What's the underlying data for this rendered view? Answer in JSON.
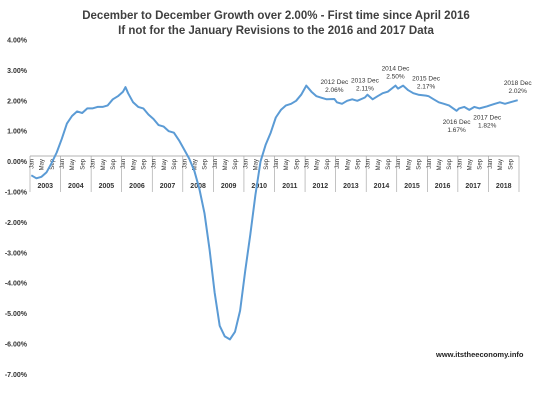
{
  "chart_data": {
    "type": "line",
    "title": "December to December Growth over 2.00%  - First time since April 2016",
    "subtitle": "If not for the January Revisions to the 2016 and 2017 Data",
    "xlabel": "",
    "ylabel": "",
    "ylim": [
      -7.0,
      4.0
    ],
    "ytick_labels": [
      "4.00%",
      "3.00%",
      "2.00%",
      "1.00%",
      "0.00%",
      "-1.00%",
      "-2.00%",
      "-3.00%",
      "-4.00%",
      "-5.00%",
      "-6.00%",
      "-7.00%"
    ],
    "month_tick_labels": [
      "Jan",
      "May",
      "Sep"
    ],
    "years": [
      "2003",
      "2004",
      "2005",
      "2006",
      "2007",
      "2008",
      "2009",
      "2010",
      "2011",
      "2012",
      "2013",
      "2014",
      "2015",
      "2016",
      "2017",
      "2018"
    ],
    "grid": false,
    "legend": "none",
    "line_color": "#5b9bd5",
    "source": "www.itstheeconomy.info",
    "series": [
      {
        "points": [
          [
            "2003-01",
            -0.45
          ],
          [
            "2003-03",
            -0.55
          ],
          [
            "2003-05",
            -0.5
          ],
          [
            "2003-07",
            -0.35
          ],
          [
            "2003-09",
            -0.05
          ],
          [
            "2003-11",
            0.3
          ],
          [
            "2004-01",
            0.75
          ],
          [
            "2004-03",
            1.25
          ],
          [
            "2004-05",
            1.5
          ],
          [
            "2004-07",
            1.65
          ],
          [
            "2004-09",
            1.6
          ],
          [
            "2004-11",
            1.75
          ],
          [
            "2005-01",
            1.75
          ],
          [
            "2005-03",
            1.8
          ],
          [
            "2005-05",
            1.8
          ],
          [
            "2005-07",
            1.85
          ],
          [
            "2005-09",
            2.05
          ],
          [
            "2005-11",
            2.15
          ],
          [
            "2006-01",
            2.3
          ],
          [
            "2006-02",
            2.45
          ],
          [
            "2006-03",
            2.25
          ],
          [
            "2006-05",
            1.95
          ],
          [
            "2006-07",
            1.8
          ],
          [
            "2006-09",
            1.75
          ],
          [
            "2006-11",
            1.55
          ],
          [
            "2007-01",
            1.4
          ],
          [
            "2007-03",
            1.2
          ],
          [
            "2007-05",
            1.15
          ],
          [
            "2007-07",
            1.0
          ],
          [
            "2007-09",
            0.95
          ],
          [
            "2007-11",
            0.7
          ],
          [
            "2008-01",
            0.4
          ],
          [
            "2008-03",
            0.1
          ],
          [
            "2008-05",
            -0.3
          ],
          [
            "2008-07",
            -0.9
          ],
          [
            "2008-09",
            -1.7
          ],
          [
            "2008-11",
            -2.9
          ],
          [
            "2009-01",
            -4.3
          ],
          [
            "2009-03",
            -5.4
          ],
          [
            "2009-05",
            -5.75
          ],
          [
            "2009-07",
            -5.85
          ],
          [
            "2009-09",
            -5.6
          ],
          [
            "2009-11",
            -4.9
          ],
          [
            "2010-01",
            -3.6
          ],
          [
            "2010-03",
            -2.4
          ],
          [
            "2010-05",
            -1.1
          ],
          [
            "2010-07",
            0.0
          ],
          [
            "2010-09",
            0.55
          ],
          [
            "2010-11",
            0.95
          ],
          [
            "2011-01",
            1.45
          ],
          [
            "2011-03",
            1.7
          ],
          [
            "2011-05",
            1.85
          ],
          [
            "2011-07",
            1.9
          ],
          [
            "2011-09",
            2.0
          ],
          [
            "2011-11",
            2.2
          ],
          [
            "2012-01",
            2.5
          ],
          [
            "2012-03",
            2.3
          ],
          [
            "2012-05",
            2.15
          ],
          [
            "2012-07",
            2.1
          ],
          [
            "2012-09",
            2.05
          ],
          [
            "2012-12",
            2.06
          ],
          [
            "2013-01",
            1.95
          ],
          [
            "2013-03",
            1.9
          ],
          [
            "2013-05",
            2.0
          ],
          [
            "2013-07",
            2.05
          ],
          [
            "2013-09",
            2.0
          ],
          [
            "2013-12",
            2.11
          ],
          [
            "2014-01",
            2.2
          ],
          [
            "2014-03",
            2.05
          ],
          [
            "2014-05",
            2.15
          ],
          [
            "2014-07",
            2.25
          ],
          [
            "2014-09",
            2.3
          ],
          [
            "2014-12",
            2.5
          ],
          [
            "2015-01",
            2.4
          ],
          [
            "2015-03",
            2.5
          ],
          [
            "2015-05",
            2.35
          ],
          [
            "2015-07",
            2.25
          ],
          [
            "2015-09",
            2.2
          ],
          [
            "2015-12",
            2.17
          ],
          [
            "2016-01",
            2.15
          ],
          [
            "2016-03",
            2.05
          ],
          [
            "2016-05",
            1.95
          ],
          [
            "2016-07",
            1.9
          ],
          [
            "2016-09",
            1.85
          ],
          [
            "2016-12",
            1.67
          ],
          [
            "2017-01",
            1.75
          ],
          [
            "2017-03",
            1.8
          ],
          [
            "2017-05",
            1.7
          ],
          [
            "2017-07",
            1.8
          ],
          [
            "2017-09",
            1.75
          ],
          [
            "2017-12",
            1.82
          ],
          [
            "2018-01",
            1.85
          ],
          [
            "2018-03",
            1.9
          ],
          [
            "2018-05",
            1.95
          ],
          [
            "2018-07",
            1.9
          ],
          [
            "2018-09",
            1.95
          ],
          [
            "2018-12",
            2.02
          ]
        ]
      }
    ],
    "annotations": [
      {
        "label": "2012 Dec",
        "value": "2.06%",
        "x": "2012-12",
        "y": 2.06,
        "text_pos": "above"
      },
      {
        "label": "2013 Dec",
        "value": "2.11%",
        "x": "2013-12",
        "y": 2.11,
        "text_pos": "above"
      },
      {
        "label": "2014 Dec",
        "value": "2.50%",
        "x": "2014-12",
        "y": 2.5,
        "text_pos": "above"
      },
      {
        "label": "2015 Dec",
        "value": "2.17%",
        "x": "2015-12",
        "y": 2.17,
        "text_pos": "above"
      },
      {
        "label": "2016 Dec",
        "value": "1.67%",
        "x": "2016-12",
        "y": 1.67,
        "text_pos": "below"
      },
      {
        "label": "2017 Dec",
        "value": "1.82%",
        "x": "2017-12",
        "y": 1.82,
        "text_pos": "below"
      },
      {
        "label": "2018 Dec",
        "value": "2.02%",
        "x": "2018-12",
        "y": 2.02,
        "text_pos": "above"
      }
    ]
  }
}
